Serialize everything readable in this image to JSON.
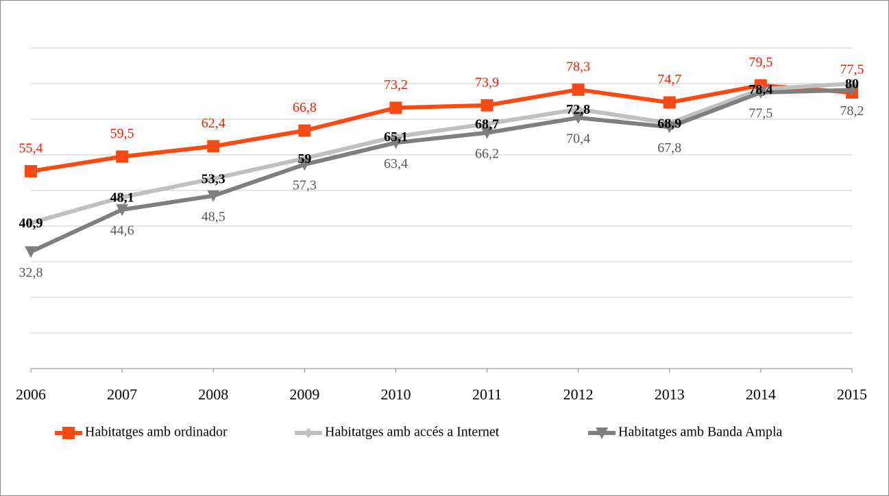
{
  "chart_data": {
    "type": "line",
    "categories": [
      "2006",
      "2007",
      "2008",
      "2009",
      "2010",
      "2011",
      "2012",
      "2013",
      "2014",
      "2015"
    ],
    "ylim": [
      0,
      90
    ],
    "yticks": [
      0,
      10,
      20,
      30,
      40,
      50,
      60,
      70,
      80,
      90
    ],
    "grid": true,
    "legend": "bottom",
    "series": [
      {
        "name": "Habitatges amb ordinador",
        "color": "#fa4a14",
        "marker": "square",
        "label_position": "above",
        "label_color": "#ff1a00",
        "values": [
          55.4,
          59.5,
          62.4,
          66.8,
          73.2,
          73.9,
          78.3,
          74.7,
          79.5,
          77.5
        ],
        "value_labels": [
          "55,4",
          "59,5",
          "62,4",
          "66,8",
          "73,2",
          "73,9",
          "78,3",
          "74,7",
          "79,5",
          "77,5"
        ]
      },
      {
        "name": "Habitatges amb accés a Internet",
        "color": "#c0c0c0",
        "marker": "diamond",
        "label_position": "center",
        "label_color": "#000000",
        "values": [
          40.9,
          48.1,
          53.3,
          59,
          65.1,
          68.7,
          72.8,
          68.9,
          78.4,
          80
        ],
        "value_labels": [
          "40,9",
          "48,1",
          "53,3",
          "59",
          "65,1",
          "68,7",
          "72,8",
          "68,9",
          "78,4",
          "80"
        ]
      },
      {
        "name": "Habitatges amb Banda Ampla",
        "color": "#7f7f7f",
        "marker": "triangle",
        "label_position": "below",
        "label_color": "#595959",
        "values": [
          32.8,
          44.6,
          48.5,
          57.3,
          63.4,
          66.2,
          70.4,
          67.8,
          77.5,
          78.2
        ],
        "value_labels": [
          "32,8",
          "44,6",
          "48,5",
          "57,3",
          "63,4",
          "66,2",
          "70,4",
          "67,8",
          "77,5",
          "78,2"
        ]
      }
    ]
  }
}
